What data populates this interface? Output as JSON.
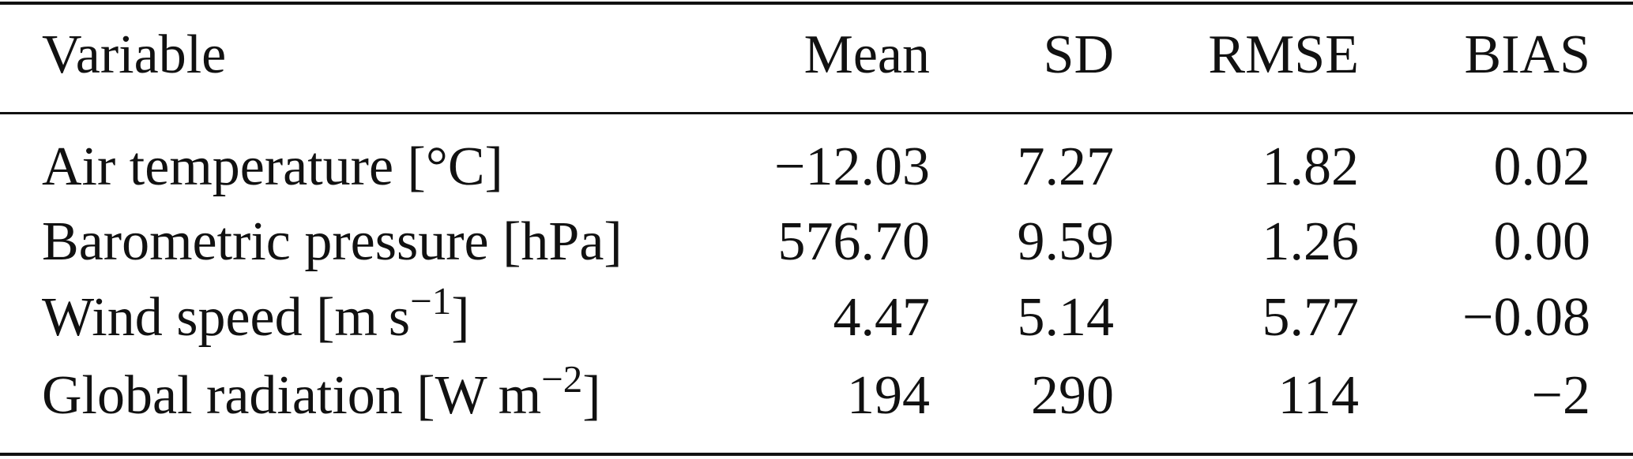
{
  "table": {
    "header": [
      "Variable",
      "Mean",
      "SD",
      "RMSE",
      "BIAS"
    ],
    "rows": [
      [
        [
          "Air temperature [°C]"
        ],
        "−12.03",
        "7.27",
        "1.82",
        "0.02"
      ],
      [
        [
          "Barometric pressure [hPa]"
        ],
        "576.70",
        "9.59",
        "1.26",
        "0.00"
      ],
      [
        [
          "Wind speed [m s",
          "−1",
          "]"
        ],
        "4.47",
        "5.14",
        "5.77",
        "−0.08"
      ],
      [
        [
          "Global radiation [W m",
          "−2",
          "]"
        ],
        "194",
        "290",
        "114",
        "−2"
      ]
    ]
  }
}
